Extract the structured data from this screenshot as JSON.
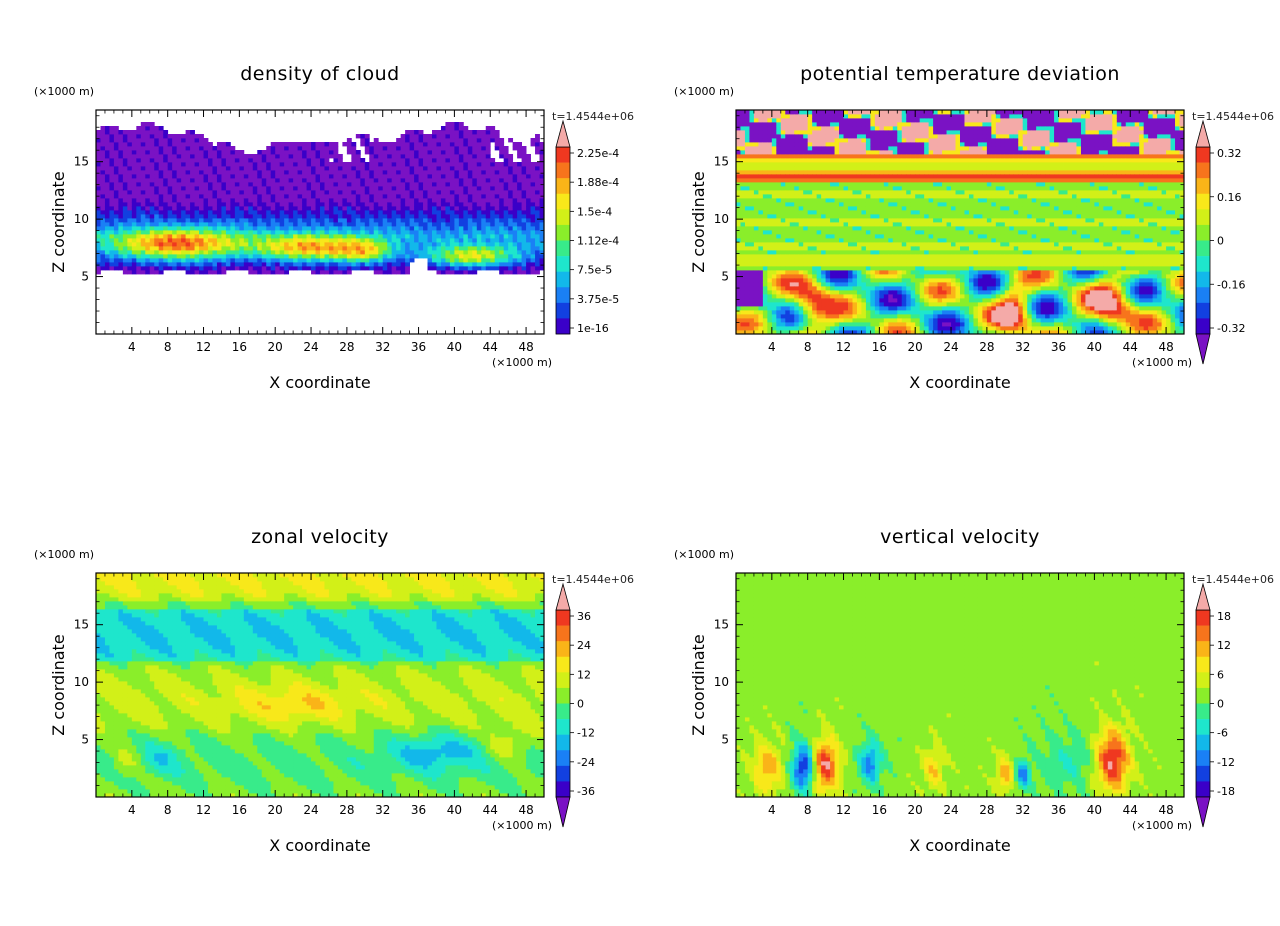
{
  "palette": [
    "#7a12c4",
    "#3a00c8",
    "#1240e0",
    "#1a80f5",
    "#12b8ea",
    "#1ee6cc",
    "#38eb8a",
    "#8aee2a",
    "#d2f018",
    "#f8e81a",
    "#fab418",
    "#f7741c",
    "#ef3820",
    "#f4aaa8"
  ],
  "chart_data": [
    {
      "type": "heatmap",
      "title": "density of cloud",
      "xlabel": "X coordinate",
      "ylabel": "Z coordinate",
      "x_unit": "(×1000 m)",
      "y_unit": "(×1000 m)",
      "time_label": "t=1.4544e+06",
      "xlim": [
        0,
        50
      ],
      "ylim": [
        0,
        19.5
      ],
      "xticks": [
        4,
        8,
        12,
        16,
        20,
        24,
        28,
        32,
        36,
        40,
        44,
        48
      ],
      "yticks": [
        5,
        10,
        15
      ],
      "colorbar_labels": [
        "2.25e-4",
        "1.88e-4",
        "1.5e-4",
        "1.12e-4",
        "7.5e-5",
        "3.75e-5",
        "1e-16"
      ],
      "pattern": "cloud"
    },
    {
      "type": "heatmap",
      "title": "potential temperature deviation",
      "xlabel": "X coordinate",
      "ylabel": "Z coordinate",
      "x_unit": "(×1000 m)",
      "y_unit": "(×1000 m)",
      "time_label": "t=1.4544e+06",
      "xlim": [
        0,
        50
      ],
      "ylim": [
        0,
        19.5
      ],
      "xticks": [
        4,
        8,
        12,
        16,
        20,
        24,
        28,
        32,
        36,
        40,
        44,
        48
      ],
      "yticks": [
        5,
        10,
        15
      ],
      "colorbar_labels": [
        "0.32",
        "0.16",
        "0",
        "-0.16",
        "-0.32"
      ],
      "pattern": "theta"
    },
    {
      "type": "heatmap",
      "title": "zonal velocity",
      "xlabel": "X coordinate",
      "ylabel": "Z coordinate",
      "x_unit": "(×1000 m)",
      "y_unit": "(×1000 m)",
      "time_label": "t=1.4544e+06",
      "xlim": [
        0,
        50
      ],
      "ylim": [
        0,
        19.5
      ],
      "xticks": [
        4,
        8,
        12,
        16,
        20,
        24,
        28,
        32,
        36,
        40,
        44,
        48
      ],
      "yticks": [
        5,
        10,
        15
      ],
      "colorbar_labels": [
        "36",
        "24",
        "12",
        "0",
        "-12",
        "-24",
        "-36"
      ],
      "pattern": "zonal"
    },
    {
      "type": "heatmap",
      "title": "vertical velocity",
      "xlabel": "X coordinate",
      "ylabel": "Z coordinate",
      "x_unit": "(×1000 m)",
      "y_unit": "(×1000 m)",
      "time_label": "t=1.4544e+06",
      "xlim": [
        0,
        50
      ],
      "ylim": [
        0,
        19.5
      ],
      "xticks": [
        4,
        8,
        12,
        16,
        20,
        24,
        28,
        32,
        36,
        40,
        44,
        48
      ],
      "yticks": [
        5,
        10,
        15
      ],
      "colorbar_labels": [
        "18",
        "12",
        "6",
        "0",
        "-6",
        "-12",
        "-18"
      ],
      "pattern": "vertical"
    }
  ]
}
